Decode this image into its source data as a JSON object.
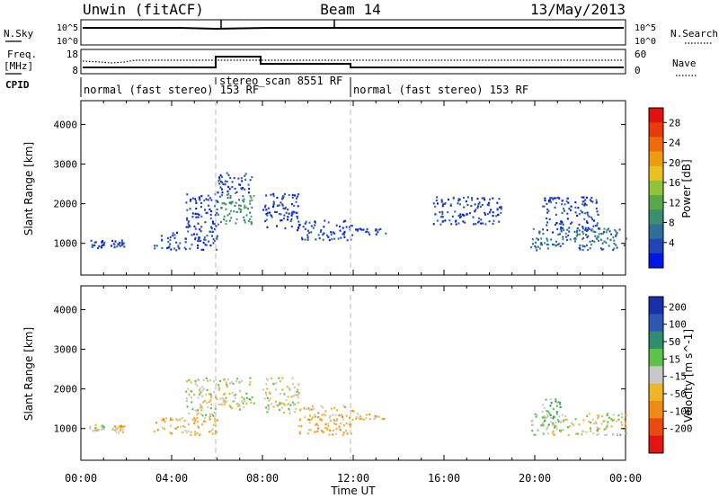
{
  "header": {
    "site": "Unwin (fitACF)",
    "beam": "Beam 14",
    "date": "13/May/2013"
  },
  "nsky_panel": {
    "left_label": "N.Sky",
    "right_label": "N.Search",
    "left_ticks": [
      "10^5",
      "10^0"
    ],
    "right_ticks": [
      "10^5",
      "10^0"
    ]
  },
  "freq_panel": {
    "left_label_line1": "Freq.",
    "left_label_line2": "[MHz]",
    "right_label": "Nave",
    "left_ticks": [
      "18",
      "8"
    ],
    "right_ticks": [
      "60",
      "0"
    ]
  },
  "cpid_panel": {
    "label": "CPID",
    "segments": [
      {
        "start_hr": 0,
        "end_hr": 6,
        "text": "normal (fast stereo) 153 RF"
      },
      {
        "start_hr": 6,
        "end_hr": 12,
        "text": "stereo_scan 8551 RF"
      },
      {
        "start_hr": 12,
        "end_hr": 24,
        "text": "normal (fast stereo) 153 RF"
      }
    ]
  },
  "chart_data": [
    {
      "type": "heatmap",
      "panel": "power",
      "ylabel": "Slant Range [km]",
      "xlabel": "",
      "xlim_hr": [
        0,
        24
      ],
      "ylim_km": [
        200,
        4600
      ],
      "yticks": [
        "1000",
        "2000",
        "3000",
        "4000"
      ],
      "colorbar": {
        "label": "Power [dB]",
        "ticks": [
          "4",
          "8",
          "12",
          "16",
          "20",
          "24",
          "28"
        ],
        "colors": [
          "#0016e6",
          "#2344b8",
          "#2f6f9a",
          "#3a8f6e",
          "#5aa84c",
          "#8fc43a",
          "#e8c020",
          "#ef9a10",
          "#f06a0a",
          "#e83a0a",
          "#e21010"
        ]
      },
      "clusters": [
        {
          "x0": 0.3,
          "x1": 1.0,
          "y0": 880,
          "y1": 1120,
          "level": 1
        },
        {
          "x0": 1.3,
          "x1": 1.9,
          "y0": 900,
          "y1": 1100,
          "level": 1
        },
        {
          "x0": 3.2,
          "x1": 6.0,
          "y0": 850,
          "y1": 1300,
          "level": 1
        },
        {
          "x0": 4.6,
          "x1": 6.0,
          "y0": 1300,
          "y1": 2300,
          "level": 1
        },
        {
          "x0": 6.0,
          "x1": 7.6,
          "y0": 1500,
          "y1": 2300,
          "level": 3
        },
        {
          "x0": 6.0,
          "x1": 7.6,
          "y0": 2300,
          "y1": 2800,
          "level": 1
        },
        {
          "x0": 8.0,
          "x1": 9.6,
          "y0": 1400,
          "y1": 2300,
          "level": 1
        },
        {
          "x0": 9.5,
          "x1": 12.0,
          "y0": 1100,
          "y1": 1600,
          "level": 1
        },
        {
          "x0": 12.0,
          "x1": 13.4,
          "y0": 1250,
          "y1": 1400,
          "level": 1
        },
        {
          "x0": 15.5,
          "x1": 18.5,
          "y0": 1500,
          "y1": 2200,
          "level": 1
        },
        {
          "x0": 19.8,
          "x1": 24.0,
          "y0": 850,
          "y1": 1400,
          "level": 2
        },
        {
          "x0": 20.3,
          "x1": 22.8,
          "y0": 1300,
          "y1": 2200,
          "level": 1
        }
      ]
    },
    {
      "type": "heatmap",
      "panel": "velocity",
      "ylabel": "Slant Range [km]",
      "xlabel": "Time UT",
      "xlim_hr": [
        0,
        24
      ],
      "ylim_km": [
        200,
        4600
      ],
      "yticks": [
        "1000",
        "2000",
        "3000",
        "4000"
      ],
      "xticks": [
        "00:00",
        "04:00",
        "08:00",
        "12:00",
        "16:00",
        "20:00",
        "00:00"
      ],
      "colorbar": {
        "label": "Velocity [m s^-1]",
        "ticks": [
          "200",
          "100",
          "50",
          "15",
          "-15",
          "-50",
          "-100",
          "-200"
        ],
        "colors": [
          "#1a2fa8",
          "#2f58b4",
          "#2e8e70",
          "#5cc24a",
          "#c8c8c8",
          "#f0b428",
          "#f08a14",
          "#ea4a10",
          "#e41414"
        ]
      },
      "clusters": [
        {
          "x0": 0.3,
          "x1": 1.0,
          "y0": 880,
          "y1": 1120,
          "level": 4
        },
        {
          "x0": 1.3,
          "x1": 1.9,
          "y0": 900,
          "y1": 1100,
          "level": 5
        },
        {
          "x0": 3.2,
          "x1": 6.0,
          "y0": 850,
          "y1": 1300,
          "level": 5
        },
        {
          "x0": 4.6,
          "x1": 6.0,
          "y0": 1300,
          "y1": 2300,
          "level": 4
        },
        {
          "x0": 6.0,
          "x1": 7.6,
          "y0": 1500,
          "y1": 2300,
          "level": 4
        },
        {
          "x0": 8.0,
          "x1": 9.6,
          "y0": 1400,
          "y1": 2300,
          "level": 4
        },
        {
          "x0": 9.5,
          "x1": 12.0,
          "y0": 850,
          "y1": 1600,
          "level": 5
        },
        {
          "x0": 12.0,
          "x1": 13.4,
          "y0": 1250,
          "y1": 1400,
          "level": 5
        },
        {
          "x0": 19.8,
          "x1": 24.0,
          "y0": 850,
          "y1": 1400,
          "level": 4
        },
        {
          "x0": 20.3,
          "x1": 21.2,
          "y0": 1100,
          "y1": 1800,
          "level": 3
        }
      ]
    }
  ]
}
